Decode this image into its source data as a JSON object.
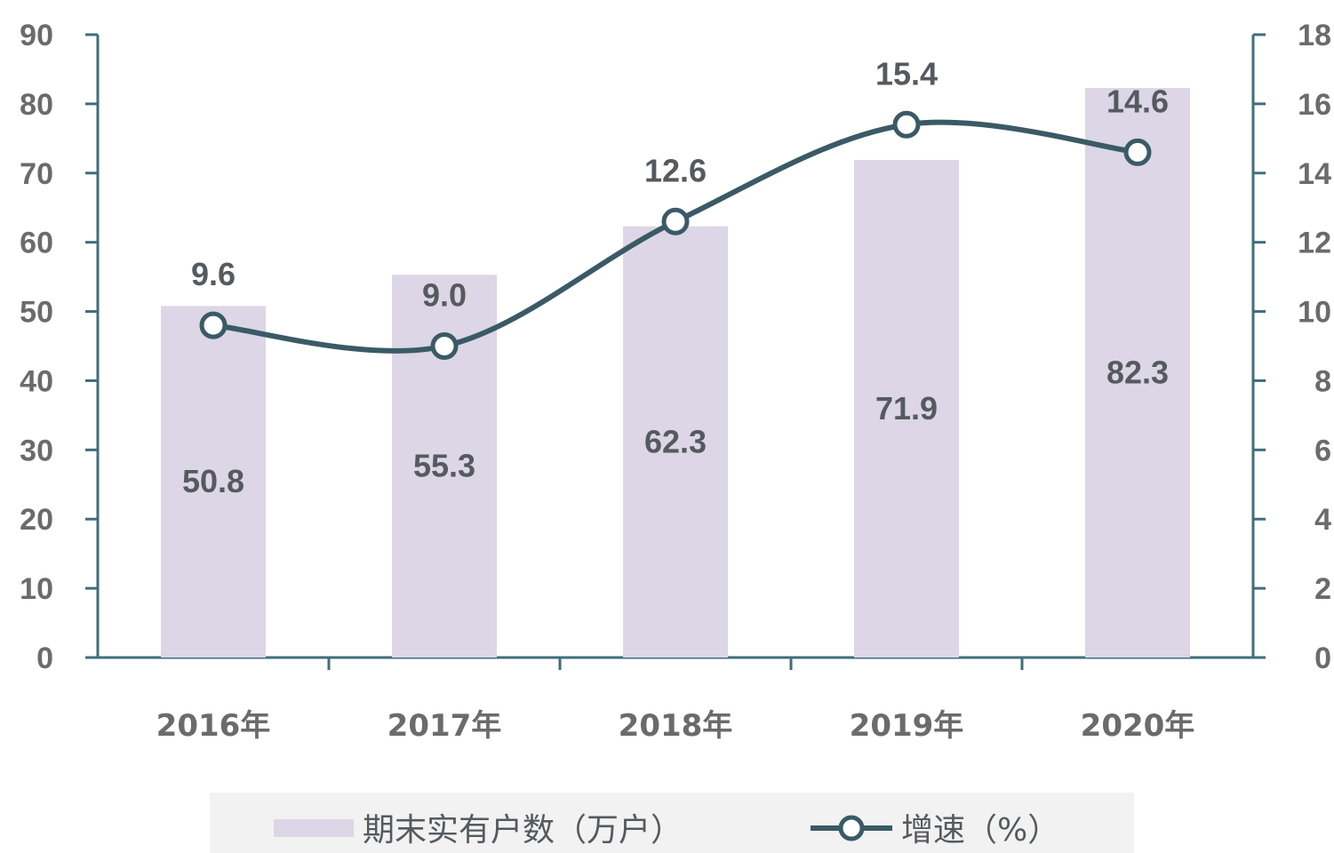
{
  "chart_data": {
    "type": "bar",
    "categories": [
      "2016年",
      "2017年",
      "2018年",
      "2019年",
      "2020年"
    ],
    "series": [
      {
        "name": "期末实有户数（万户）",
        "type": "bar",
        "axis": "left",
        "values": [
          50.8,
          55.3,
          62.3,
          71.9,
          82.3
        ]
      },
      {
        "name": "增速（%）",
        "type": "line",
        "axis": "right",
        "values": [
          9.6,
          9.0,
          12.6,
          15.4,
          14.6
        ]
      }
    ],
    "y_left": {
      "min": 0,
      "max": 90,
      "step": 10,
      "ticks": [
        "0",
        "10",
        "20",
        "30",
        "40",
        "50",
        "60",
        "70",
        "80",
        "90"
      ]
    },
    "y_right": {
      "min": 0,
      "max": 18,
      "step": 2,
      "ticks": [
        "0",
        "2",
        "4",
        "6",
        "8",
        "10",
        "12",
        "14",
        "16",
        "18"
      ]
    },
    "legend_position": "bottom",
    "grid": false
  },
  "colors": {
    "bar": "#dcd6e6",
    "line": "#3a5a66",
    "axis": "#3f6e7b",
    "legend_bg": "#f2f2f2"
  }
}
